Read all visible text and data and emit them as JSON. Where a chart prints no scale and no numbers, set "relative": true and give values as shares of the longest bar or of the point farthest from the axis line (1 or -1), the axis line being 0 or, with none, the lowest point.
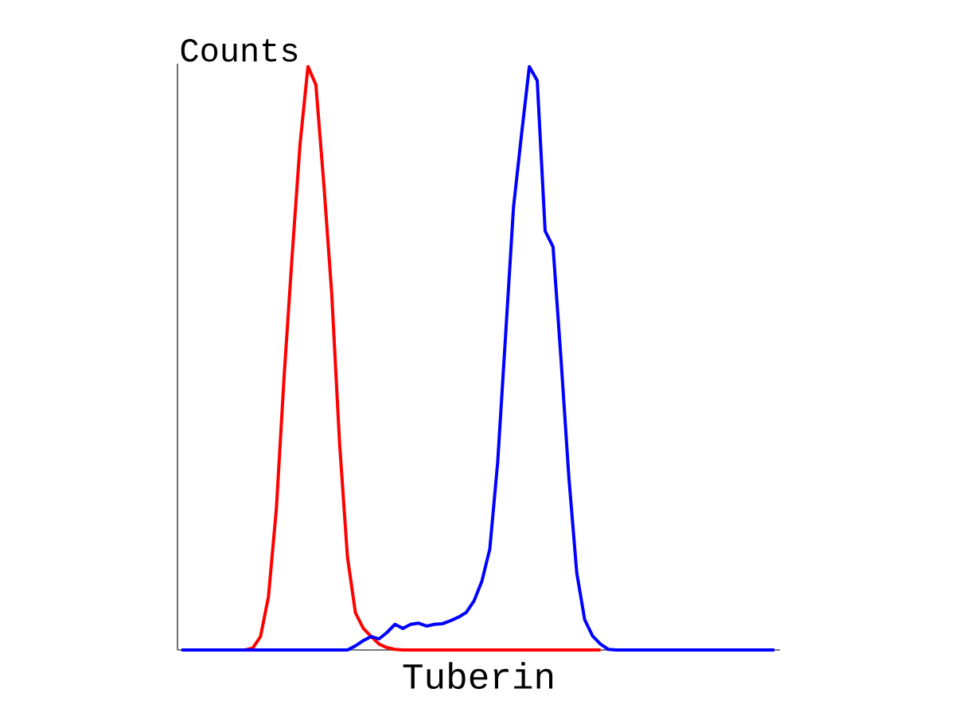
{
  "chart_data": {
    "type": "line",
    "relative": true,
    "xlabel": "Tuberin",
    "ylabel": "Counts",
    "categories": [
      null,
      null,
      null,
      null,
      null,
      null,
      null,
      null,
      null,
      null,
      null,
      null,
      null,
      null,
      null,
      null,
      null,
      null,
      null,
      null,
      null,
      null,
      null,
      null,
      null,
      null,
      null,
      null,
      null,
      null,
      null,
      null,
      null,
      null,
      null,
      null,
      null,
      null,
      null,
      null,
      null,
      null,
      null,
      null,
      null,
      null,
      null,
      null,
      null,
      null,
      null,
      null,
      null,
      null,
      null,
      null,
      null,
      null,
      null,
      null,
      null,
      null,
      null,
      null,
      null,
      null,
      null,
      null,
      null,
      null,
      null,
      null,
      null,
      null,
      null,
      null
    ],
    "series": [
      {
        "color": "#ff0000",
        "values": [
          null,
          null,
          null,
          null,
          null,
          null,
          null,
          0,
          0,
          0.003,
          0.023,
          0.091,
          0.241,
          0.472,
          0.676,
          0.867,
          1,
          0.969,
          0.8,
          0.612,
          0.354,
          0.159,
          0.064,
          0.037,
          0.023,
          0.01,
          0.004,
          0.001,
          0,
          0,
          0,
          0,
          0,
          0,
          0,
          0,
          0,
          0,
          0,
          0,
          0,
          0,
          0,
          0,
          0,
          0,
          0,
          0,
          0,
          0,
          0,
          0,
          0,
          0,
          null,
          null,
          null,
          null,
          null,
          null,
          null,
          null,
          null,
          null,
          null,
          null,
          null,
          null,
          null,
          null,
          null,
          null,
          null,
          null,
          null,
          null
        ]
      },
      {
        "color": "#0000ff",
        "values": [
          0,
          0,
          0,
          0,
          0,
          0,
          0,
          0,
          0,
          0,
          0,
          0,
          0,
          0,
          0,
          0,
          0,
          0,
          0,
          0,
          0,
          0,
          0.007,
          0.016,
          0.023,
          0.019,
          0.03,
          0.044,
          0.037,
          0.044,
          0.046,
          0.041,
          0.044,
          0.045,
          0.05,
          0.056,
          0.064,
          0.084,
          0.118,
          0.173,
          0.322,
          0.54,
          0.759,
          0.882,
          1,
          0.976,
          0.718,
          0.691,
          0.5,
          0.296,
          0.132,
          0.052,
          0.024,
          0.01,
          0.001,
          0,
          0,
          0,
          0,
          0,
          0,
          0,
          0,
          0,
          0,
          0,
          0,
          0,
          0,
          0,
          0,
          0,
          0,
          0,
          0,
          0
        ]
      }
    ]
  }
}
